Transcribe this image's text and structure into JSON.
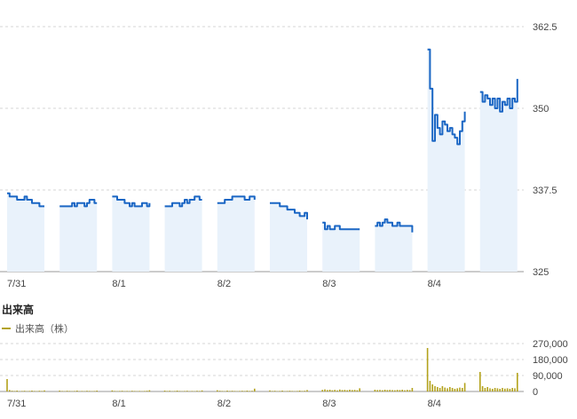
{
  "volume_title": "出来高",
  "legend_label": "出来高（株）",
  "colors": {
    "price_line": "#1a66c4",
    "session_fill": "#e9f2fb",
    "volume": "#b3a21b",
    "grid": "#d6d6d6"
  },
  "chart_data": [
    {
      "type": "line",
      "title": "",
      "xlabel": "",
      "ylabel": "",
      "ylim": [
        325,
        362.5
      ],
      "y_ticks": [
        "362.5",
        "350",
        "337.5",
        "325"
      ],
      "x_ticks": [
        "7/31",
        "8/1",
        "8/2",
        "8/3",
        "8/4"
      ],
      "grid": true,
      "sessions": [
        {
          "label": "7/31",
          "prices": [
            337.0,
            336.5,
            336.5,
            336.5,
            336.0,
            336.0,
            336.0,
            336.5,
            336.0,
            336.0,
            335.5,
            335.5,
            335.5,
            335.0,
            335.0,
            335.0
          ]
        },
        {
          "label": "",
          "prices": [
            335.0,
            335.0,
            335.0,
            335.0,
            335.0,
            335.5,
            335.0,
            335.5,
            335.5,
            335.5,
            335.0,
            335.5,
            336.0,
            336.0,
            335.5,
            335.5
          ]
        },
        {
          "label": "8/1",
          "prices": [
            336.5,
            336.5,
            336.0,
            336.0,
            336.0,
            335.5,
            335.5,
            335.0,
            335.5,
            335.0,
            335.0,
            335.0,
            335.5,
            335.5,
            335.0,
            335.5
          ]
        },
        {
          "label": "",
          "prices": [
            335.0,
            335.0,
            335.0,
            335.5,
            335.5,
            335.5,
            335.0,
            335.5,
            336.0,
            335.5,
            336.0,
            336.0,
            336.5,
            336.5,
            336.0,
            336.0
          ]
        },
        {
          "label": "8/2",
          "prices": [
            335.5,
            335.5,
            335.5,
            336.0,
            336.0,
            336.0,
            336.5,
            336.5,
            336.5,
            336.5,
            336.5,
            336.0,
            336.0,
            336.5,
            336.5,
            336.0
          ]
        },
        {
          "label": "",
          "prices": [
            335.5,
            335.5,
            335.5,
            335.5,
            335.0,
            335.0,
            335.0,
            334.5,
            334.5,
            334.5,
            334.0,
            334.0,
            333.5,
            333.5,
            334.0,
            333.0
          ]
        },
        {
          "label": "8/3",
          "prices": [
            332.5,
            331.5,
            332.0,
            331.5,
            331.5,
            332.0,
            332.0,
            331.5,
            331.5,
            331.5,
            331.5,
            331.5,
            331.5,
            331.5,
            331.5,
            331.5
          ]
        },
        {
          "label": "",
          "prices": [
            332.0,
            332.5,
            332.0,
            332.5,
            333.0,
            332.5,
            332.5,
            332.0,
            332.0,
            332.5,
            332.0,
            332.0,
            332.0,
            332.0,
            332.0,
            331.0
          ]
        },
        {
          "label": "8/4",
          "prices": [
            359.0,
            353.0,
            345.0,
            349.0,
            347.0,
            346.0,
            348.0,
            347.5,
            346.5,
            347.0,
            346.0,
            345.5,
            344.5,
            346.5,
            348.0,
            349.5
          ]
        },
        {
          "label": "",
          "prices": [
            352.5,
            351.0,
            352.0,
            351.5,
            350.5,
            351.5,
            350.0,
            351.5,
            349.5,
            351.0,
            350.5,
            351.5,
            350.0,
            351.5,
            351.0,
            354.5
          ]
        }
      ]
    },
    {
      "type": "bar",
      "title": "出来高",
      "ylim": [
        0,
        270000
      ],
      "y_ticks": [
        "270,000",
        "180,000",
        "90,000",
        "0"
      ],
      "x_ticks": [
        "7/31",
        "8/1",
        "8/2",
        "8/3",
        "8/4"
      ],
      "legend": [
        "出来高（株）"
      ],
      "grid": true,
      "sessions": [
        {
          "label": "7/31",
          "volumes": [
            70000,
            8000,
            4000,
            3000,
            5000,
            2000,
            3000,
            4000,
            2000,
            3000,
            5000,
            3000,
            2000,
            4000,
            3000,
            6000
          ]
        },
        {
          "label": "",
          "volumes": [
            5000,
            3000,
            2000,
            4000,
            3000,
            2000,
            3000,
            5000,
            2000,
            3000,
            2000,
            4000,
            3000,
            2000,
            3000,
            5000
          ]
        },
        {
          "label": "8/1",
          "volumes": [
            6000,
            3000,
            2000,
            3000,
            4000,
            2000,
            3000,
            2000,
            4000,
            3000,
            2000,
            3000,
            2000,
            3000,
            4000,
            7000
          ]
        },
        {
          "label": "",
          "volumes": [
            5000,
            3000,
            4000,
            2000,
            3000,
            5000,
            3000,
            2000,
            3000,
            4000,
            2000,
            3000,
            2000,
            4000,
            3000,
            6000
          ]
        },
        {
          "label": "8/2",
          "volumes": [
            7000,
            4000,
            3000,
            2000,
            5000,
            3000,
            4000,
            3000,
            2000,
            3000,
            4000,
            3000,
            5000,
            3000,
            4000,
            16000
          ]
        },
        {
          "label": "",
          "volumes": [
            6000,
            3000,
            4000,
            2000,
            3000,
            5000,
            2000,
            3000,
            4000,
            3000,
            2000,
            3000,
            5000,
            3000,
            4000,
            8000
          ]
        },
        {
          "label": "8/3",
          "volumes": [
            9000,
            12000,
            8000,
            10000,
            7000,
            9000,
            6000,
            11000,
            8000,
            9000,
            7000,
            10000,
            8000,
            9000,
            7000,
            18000
          ]
        },
        {
          "label": "",
          "volumes": [
            10000,
            8000,
            9000,
            7000,
            10000,
            8000,
            9000,
            8000,
            7000,
            9000,
            8000,
            10000,
            7000,
            9000,
            8000,
            20000
          ]
        },
        {
          "label": "8/4",
          "volumes": [
            245000,
            60000,
            40000,
            30000,
            25000,
            20000,
            30000,
            22000,
            18000,
            25000,
            20000,
            15000,
            18000,
            22000,
            20000,
            48000
          ]
        },
        {
          "label": "",
          "volumes": [
            110000,
            30000,
            20000,
            25000,
            18000,
            15000,
            20000,
            18000,
            15000,
            20000,
            16000,
            18000,
            15000,
            20000,
            18000,
            105000
          ]
        }
      ]
    }
  ]
}
